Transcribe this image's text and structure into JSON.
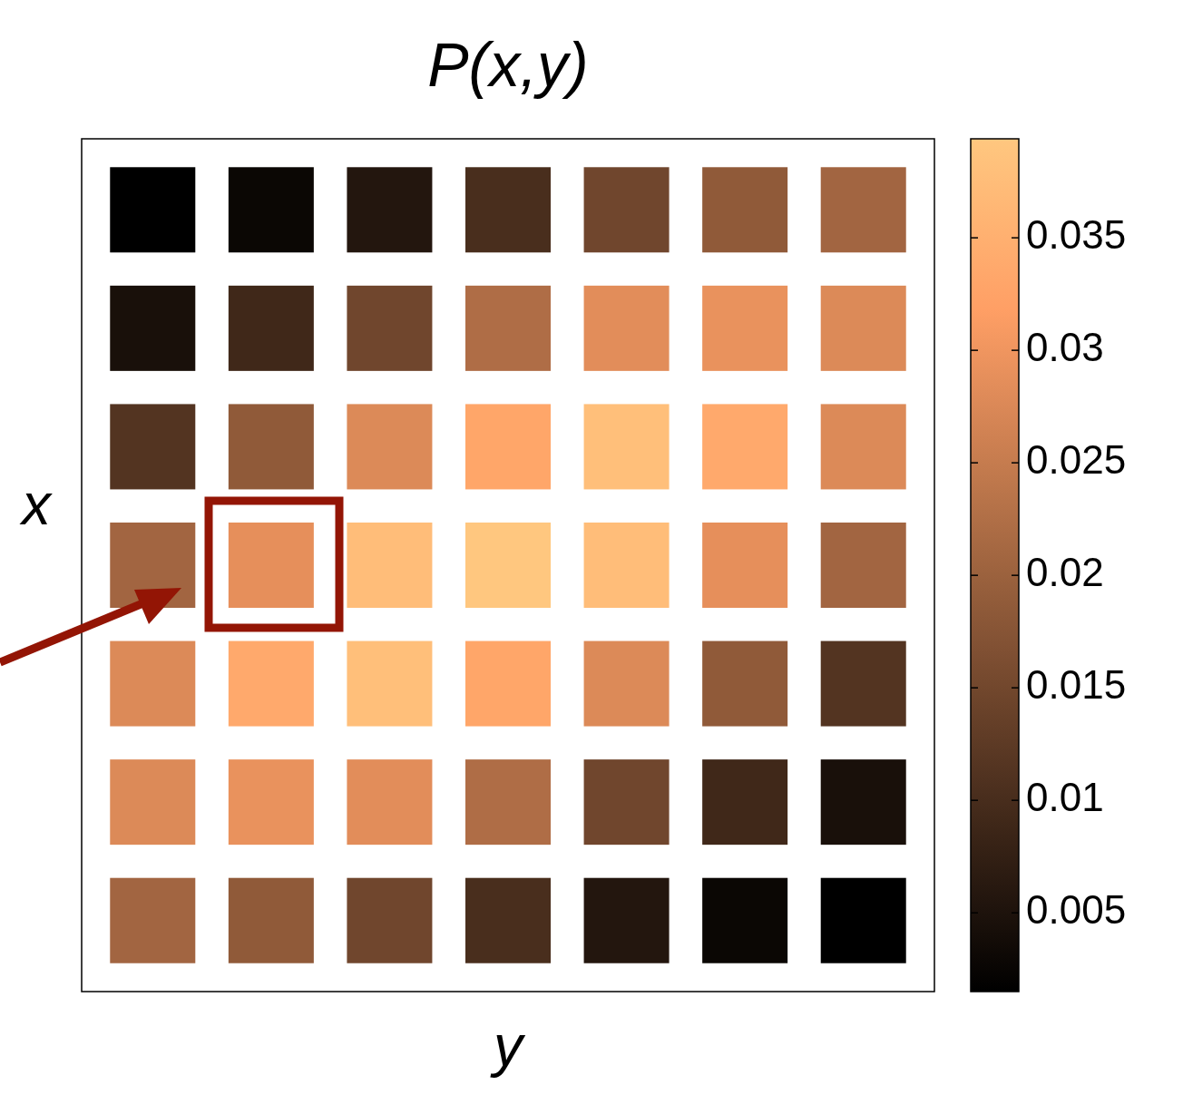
{
  "chart_data": {
    "type": "heatmap",
    "title": "P(x,y)",
    "xlabel": "y",
    "ylabel": "x",
    "categories": [
      null,
      null,
      null,
      null,
      null,
      null,
      null
    ],
    "y_categories": [
      null,
      null,
      null,
      null,
      null,
      null,
      null
    ],
    "cells": [
      [
        0.0015,
        0.0028,
        0.0057,
        0.0102,
        0.0148,
        0.0186,
        0.0208
      ],
      [
        0.0045,
        0.0091,
        0.0148,
        0.0223,
        0.0284,
        0.0292,
        0.0277
      ],
      [
        0.0114,
        0.0186,
        0.0277,
        0.033,
        0.0379,
        0.0337,
        0.0277
      ],
      [
        0.0208,
        0.0288,
        0.0375,
        0.0394,
        0.0375,
        0.0288,
        0.0208
      ],
      [
        0.0277,
        0.0337,
        0.0379,
        0.033,
        0.0277,
        0.0186,
        0.0114
      ],
      [
        0.0277,
        0.0292,
        0.0284,
        0.0223,
        0.0148,
        0.0091,
        0.0045
      ],
      [
        0.0208,
        0.0186,
        0.0148,
        0.0102,
        0.0057,
        0.0028,
        0.0015
      ]
    ],
    "clim": [
      0.0015,
      0.0394
    ],
    "cticks": [
      0.005,
      0.01,
      0.015,
      0.02,
      0.025,
      0.03,
      0.035
    ]
  }
}
